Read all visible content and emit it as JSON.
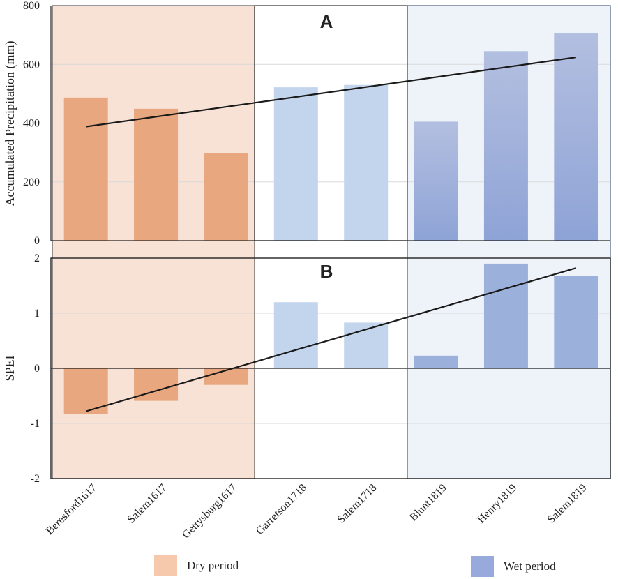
{
  "chart_data": [
    {
      "type": "bar",
      "panel_label": "A",
      "title": "",
      "ylabel": "Accumulated Precipitation (mm)",
      "xlabel": "",
      "ylim": [
        0,
        800
      ],
      "yticks": [
        "0",
        "200",
        "400",
        "600",
        "800"
      ],
      "categories": [
        "Beresford1617",
        "Salem1617",
        "Gettysburg1617",
        "Garretson1718",
        "Salem1718",
        "Blunt1819",
        "Henry1819",
        "Salem1819"
      ],
      "values": [
        487,
        449,
        297,
        522,
        530,
        405,
        645,
        705
      ],
      "trendline": {
        "start": 388,
        "end": 624
      }
    },
    {
      "type": "bar",
      "panel_label": "B",
      "title": "",
      "ylabel": "SPEI",
      "xlabel": "",
      "ylim": [
        -2,
        2
      ],
      "yticks": [
        "-2",
        "-1",
        "0",
        "1",
        "2"
      ],
      "categories": [
        "Beresford1617",
        "Salem1617",
        "Gettysburg1617",
        "Garretson1718",
        "Salem1718",
        "Blunt1819",
        "Henry1819",
        "Salem1819"
      ],
      "values": [
        -0.83,
        -0.59,
        -0.3,
        1.2,
        0.83,
        0.23,
        1.9,
        1.68
      ],
      "trendline": {
        "start": -0.78,
        "end": 1.82
      }
    }
  ],
  "periods": {
    "dry": {
      "label": "Dry period",
      "start_index": 0,
      "end_index": 2
    },
    "mid": {
      "start_index": 3,
      "end_index": 4
    },
    "wet": {
      "label": "Wet period",
      "start_index": 5,
      "end_index": 7
    }
  },
  "colors": {
    "dry_bar": "#e8a77e",
    "dry_bg": "#f8e1d5",
    "dry_swatch": "#f6c9ad",
    "mid_bar": "#c3d5ec",
    "wet_bar_top": "#b3bfe0",
    "wet_bar_bottom": "#8ea3d6",
    "wet_bar_b": "#9cb0dc",
    "wet_bg": "#eef2f9",
    "wet_swatch": "#98aadc",
    "trend": "#1a1a1a"
  },
  "legend": {
    "dry_label": "Dry period",
    "wet_label": "Wet period"
  }
}
